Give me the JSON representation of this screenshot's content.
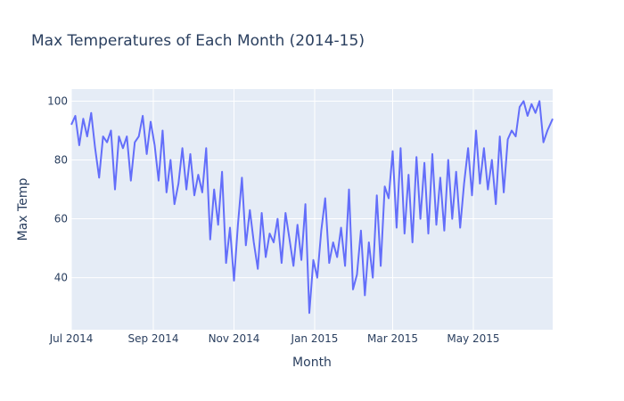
{
  "chart_data": {
    "type": "line",
    "title": "Max Temperatures of Each Month (2014-15)",
    "xlabel": "Month",
    "ylabel": "Max Temp",
    "x_range": [
      "2014-07-01",
      "2015-06-30"
    ],
    "ylim": [
      22.3,
      104.1
    ],
    "x_ticks": [
      {
        "date": "2014-07-01",
        "label": "Jul 2014"
      },
      {
        "date": "2014-09-01",
        "label": "Sep 2014"
      },
      {
        "date": "2014-11-01",
        "label": "Nov 2014"
      },
      {
        "date": "2015-01-01",
        "label": "Jan 2015"
      },
      {
        "date": "2015-03-01",
        "label": "Mar 2015"
      },
      {
        "date": "2015-05-01",
        "label": "May 2015"
      }
    ],
    "y_ticks": [
      40,
      60,
      80,
      100
    ],
    "grid": true,
    "background_color": "#e5ecf6",
    "series": [
      {
        "color": "#636efa",
        "x": [
          "2014-07-01",
          "2014-07-04",
          "2014-07-07",
          "2014-07-10",
          "2014-07-13",
          "2014-07-16",
          "2014-07-19",
          "2014-07-22",
          "2014-07-25",
          "2014-07-28",
          "2014-07-31",
          "2014-08-03",
          "2014-08-06",
          "2014-08-09",
          "2014-08-12",
          "2014-08-15",
          "2014-08-18",
          "2014-08-21",
          "2014-08-24",
          "2014-08-27",
          "2014-08-30",
          "2014-09-02",
          "2014-09-05",
          "2014-09-08",
          "2014-09-11",
          "2014-09-14",
          "2014-09-17",
          "2014-09-20",
          "2014-09-23",
          "2014-09-26",
          "2014-09-29",
          "2014-10-02",
          "2014-10-05",
          "2014-10-08",
          "2014-10-11",
          "2014-10-14",
          "2014-10-17",
          "2014-10-20",
          "2014-10-23",
          "2014-10-26",
          "2014-10-29",
          "2014-11-01",
          "2014-11-04",
          "2014-11-07",
          "2014-11-10",
          "2014-11-13",
          "2014-11-16",
          "2014-11-19",
          "2014-11-22",
          "2014-11-25",
          "2014-11-28",
          "2014-12-01",
          "2014-12-04",
          "2014-12-07",
          "2014-12-10",
          "2014-12-13",
          "2014-12-16",
          "2014-12-19",
          "2014-12-22",
          "2014-12-25",
          "2014-12-28",
          "2014-12-31",
          "2015-01-03",
          "2015-01-06",
          "2015-01-09",
          "2015-01-12",
          "2015-01-15",
          "2015-01-18",
          "2015-01-21",
          "2015-01-24",
          "2015-01-27",
          "2015-01-30",
          "2015-02-02",
          "2015-02-05",
          "2015-02-08",
          "2015-02-11",
          "2015-02-14",
          "2015-02-17",
          "2015-02-20",
          "2015-02-23",
          "2015-02-26",
          "2015-03-01",
          "2015-03-04",
          "2015-03-07",
          "2015-03-10",
          "2015-03-13",
          "2015-03-16",
          "2015-03-19",
          "2015-03-22",
          "2015-03-25",
          "2015-03-28",
          "2015-03-31",
          "2015-04-03",
          "2015-04-06",
          "2015-04-09",
          "2015-04-12",
          "2015-04-15",
          "2015-04-18",
          "2015-04-21",
          "2015-04-24",
          "2015-04-27",
          "2015-04-30",
          "2015-05-03",
          "2015-05-06",
          "2015-05-09",
          "2015-05-12",
          "2015-05-15",
          "2015-05-18",
          "2015-05-21",
          "2015-05-24",
          "2015-05-27",
          "2015-05-30",
          "2015-06-02",
          "2015-06-05",
          "2015-06-08",
          "2015-06-11",
          "2015-06-14",
          "2015-06-17",
          "2015-06-20",
          "2015-06-23",
          "2015-06-26",
          "2015-06-30"
        ],
        "y": [
          92,
          95,
          85,
          94,
          88,
          96,
          84,
          74,
          88,
          86,
          90,
          70,
          88,
          84,
          88,
          73,
          86,
          88,
          95,
          82,
          93,
          85,
          73,
          90,
          69,
          80,
          65,
          72,
          84,
          70,
          82,
          68,
          75,
          69,
          84,
          53,
          70,
          58,
          76,
          45,
          57,
          39,
          58,
          74,
          51,
          63,
          52,
          43,
          62,
          47,
          55,
          52,
          60,
          45,
          62,
          53,
          44,
          58,
          46,
          65,
          28,
          46,
          40,
          56,
          67,
          45,
          52,
          47,
          57,
          44,
          70,
          36,
          41,
          56,
          34,
          52,
          40,
          68,
          44,
          71,
          67,
          83,
          57,
          84,
          55,
          75,
          52,
          81,
          60,
          79,
          55,
          82,
          58,
          74,
          56,
          80,
          60,
          76,
          57,
          72,
          84,
          68,
          90,
          72,
          84,
          70,
          80,
          65,
          88,
          69,
          87,
          90,
          88,
          98,
          100,
          95,
          99,
          96,
          100,
          86,
          90,
          94
        ]
      }
    ]
  }
}
